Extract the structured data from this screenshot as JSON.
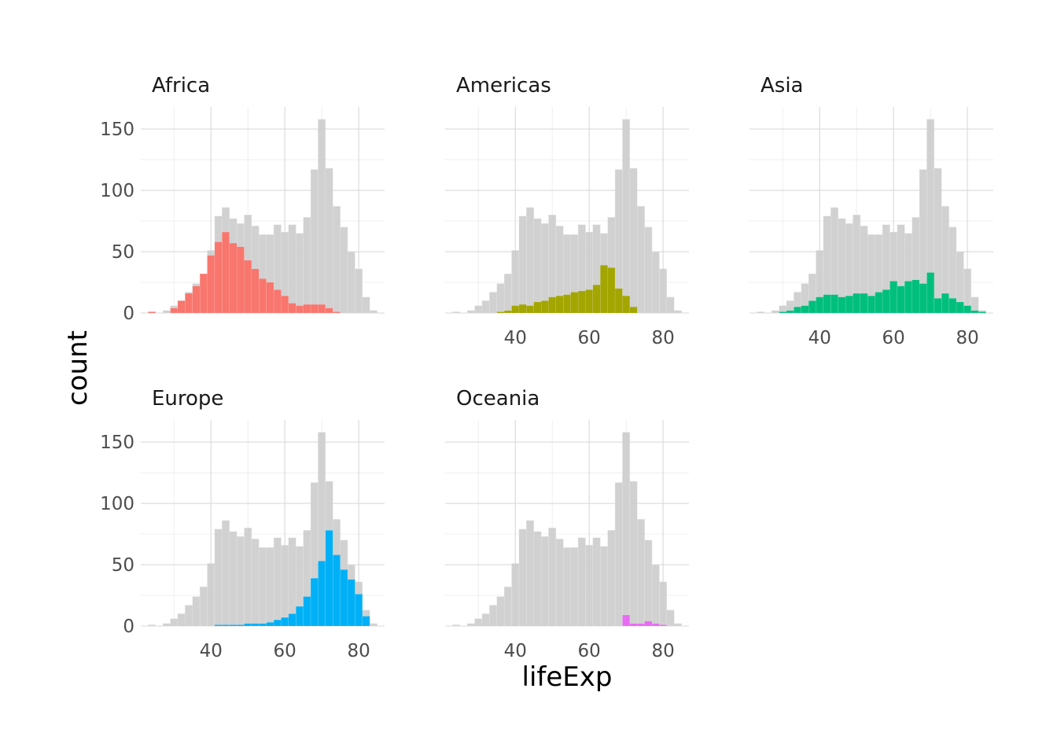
{
  "chart_data": {
    "type": "bar",
    "subtype": "faceted-histogram",
    "xlabel": "lifeExp",
    "ylabel": "count",
    "xlim": [
      21,
      87
    ],
    "ylim": [
      0,
      168
    ],
    "x_ticks": [
      40,
      60,
      80
    ],
    "y_ticks": [
      0,
      50,
      100,
      150
    ],
    "grid": true,
    "legend": "none",
    "bin_width": 2,
    "bin_centers": [
      24,
      26,
      28,
      30,
      32,
      34,
      36,
      38,
      40,
      42,
      44,
      46,
      48,
      50,
      52,
      54,
      56,
      58,
      60,
      62,
      64,
      66,
      68,
      70,
      72,
      74,
      76,
      78,
      80,
      82,
      84
    ],
    "background_series": {
      "name": "all",
      "color": "#cccccc",
      "values": [
        1,
        0,
        2,
        6,
        10,
        17,
        24,
        32,
        51,
        79,
        86,
        77,
        73,
        80,
        71,
        64,
        64,
        72,
        66,
        72,
        65,
        78,
        117,
        158,
        118,
        87,
        70,
        50,
        36,
        13,
        2
      ]
    },
    "panels": [
      {
        "title": "Africa",
        "color": "#F8766D",
        "values": [
          1,
          0,
          0,
          4,
          10,
          16,
          22,
          32,
          47,
          58,
          66,
          57,
          54,
          43,
          36,
          28,
          25,
          19,
          14,
          8,
          6,
          7,
          7,
          7,
          4,
          1,
          0,
          0,
          0,
          0,
          0
        ]
      },
      {
        "title": "Americas",
        "color": "#A3A500",
        "values": [
          0,
          0,
          0,
          0,
          0,
          0,
          1,
          2,
          6,
          7,
          6,
          9,
          10,
          13,
          14,
          15,
          17,
          18,
          19,
          23,
          39,
          37,
          20,
          14,
          5,
          0,
          0,
          0,
          0,
          0,
          0
        ]
      },
      {
        "title": "Asia",
        "color": "#00BF7D",
        "values": [
          0,
          0,
          0,
          1,
          2,
          5,
          6,
          10,
          13,
          15,
          15,
          13,
          14,
          16,
          16,
          14,
          17,
          19,
          26,
          22,
          26,
          27,
          24,
          33,
          12,
          16,
          12,
          9,
          6,
          2,
          1
        ]
      },
      {
        "title": "Europe",
        "color": "#00B0F6",
        "values": [
          0,
          0,
          0,
          0,
          0,
          0,
          0,
          0,
          0,
          1,
          1,
          1,
          1,
          2,
          2,
          2,
          3,
          5,
          7,
          10,
          16,
          24,
          39,
          53,
          78,
          58,
          46,
          38,
          26,
          8,
          0
        ]
      },
      {
        "title": "Oceania",
        "color": "#E76BF3",
        "values": [
          0,
          0,
          0,
          0,
          0,
          0,
          0,
          0,
          0,
          0,
          0,
          0,
          0,
          0,
          0,
          0,
          0,
          0,
          0,
          0,
          0,
          0,
          0,
          9,
          2,
          2,
          4,
          2,
          1,
          0,
          0
        ]
      }
    ]
  }
}
